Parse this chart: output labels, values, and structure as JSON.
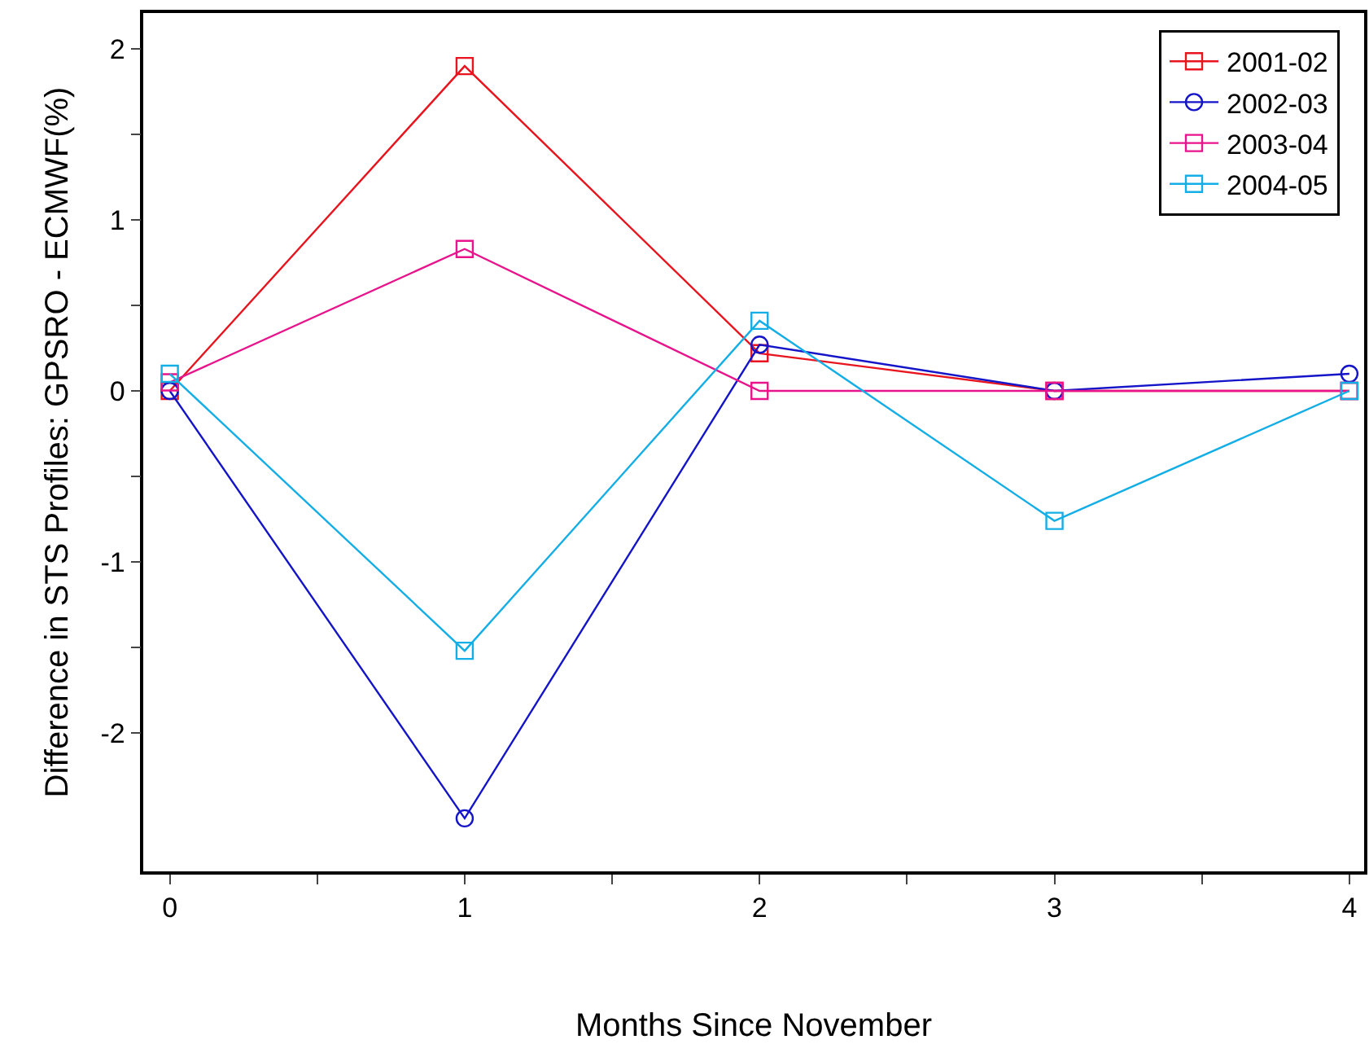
{
  "chart_data": {
    "type": "line",
    "xlabel": "Months Since November",
    "ylabel": "Difference in STS Profiles: GPSRO - ECMWF(%)",
    "x": [
      0,
      1,
      2,
      3,
      4
    ],
    "series": [
      {
        "name": "2001-02",
        "color": "#e8141e",
        "marker": "square",
        "values": [
          0,
          1.9,
          0.22,
          0,
          0
        ]
      },
      {
        "name": "2002-03",
        "color": "#1414c8",
        "marker": "circle",
        "values": [
          0,
          -2.5,
          0.27,
          0,
          0.1
        ]
      },
      {
        "name": "2003-04",
        "color": "#e8148c",
        "marker": "square",
        "values": [
          0.05,
          0.83,
          0,
          0,
          0
        ]
      },
      {
        "name": "2004-05",
        "color": "#14aee6",
        "marker": "square",
        "values": [
          0.1,
          -1.52,
          0.41,
          -0.76,
          0
        ]
      }
    ],
    "xlim": [
      -0.09,
      4.05
    ],
    "ylim": [
      -2.81,
      2.21
    ],
    "xticks": [
      0,
      {
        "value": 0.5,
        "label": null
      },
      1,
      {
        "value": 1.5,
        "label": null
      },
      2,
      {
        "value": 2.5,
        "label": null
      },
      3,
      {
        "value": 3.5,
        "label": null
      },
      4
    ],
    "yticks": [
      -2,
      {
        "value": -1.5,
        "label": null
      },
      -1,
      {
        "value": -0.5,
        "label": null
      },
      0,
      {
        "value": 0.5,
        "label": null
      },
      1,
      {
        "value": 1.5,
        "label": null
      },
      2
    ],
    "grid": false,
    "legend": "top right",
    "line_style": "solid"
  }
}
